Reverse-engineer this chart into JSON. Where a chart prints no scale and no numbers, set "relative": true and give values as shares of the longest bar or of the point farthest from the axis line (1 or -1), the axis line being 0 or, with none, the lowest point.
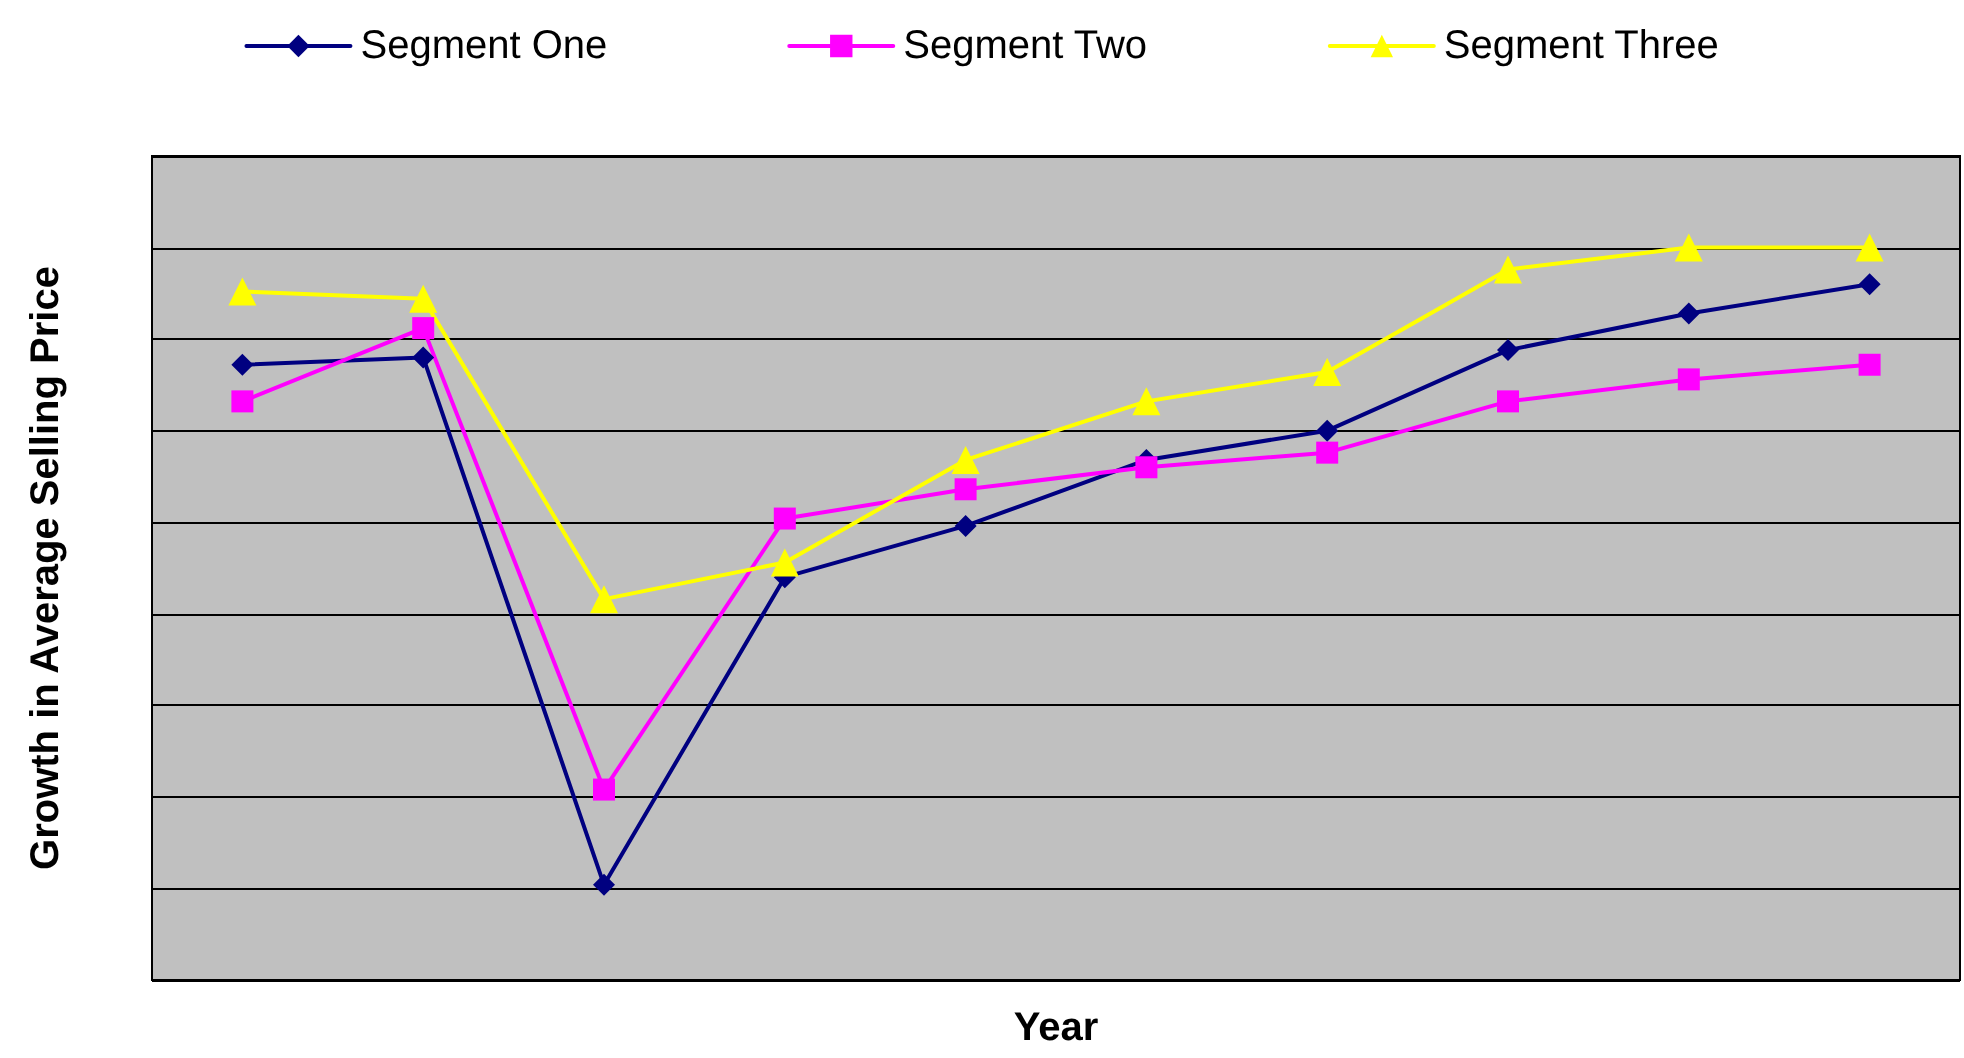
{
  "chart_data": {
    "type": "line",
    "relative": true,
    "xlabel": "Year",
    "ylabel": "Growth in Average Selling Price",
    "categories": [
      null,
      null,
      null,
      null,
      null,
      null,
      null,
      null,
      null,
      null
    ],
    "series": [
      {
        "name": "Segment One",
        "color": "#000080",
        "marker": "diamond",
        "values": [
          0.84,
          0.85,
          0.13,
          0.55,
          0.62,
          0.71,
          0.75,
          0.86,
          0.91,
          0.95
        ]
      },
      {
        "name": "Segment Two",
        "color": "#ff00ff",
        "marker": "square",
        "values": [
          0.79,
          0.89,
          0.26,
          0.63,
          0.67,
          0.7,
          0.72,
          0.79,
          0.82,
          0.84
        ]
      },
      {
        "name": "Segment Three",
        "color": "#ffff00",
        "marker": "triangle",
        "values": [
          0.94,
          0.93,
          0.52,
          0.57,
          0.71,
          0.79,
          0.83,
          0.97,
          1,
          1
        ]
      }
    ],
    "grid": "y",
    "legend": "top",
    "line_style": "solid"
  }
}
